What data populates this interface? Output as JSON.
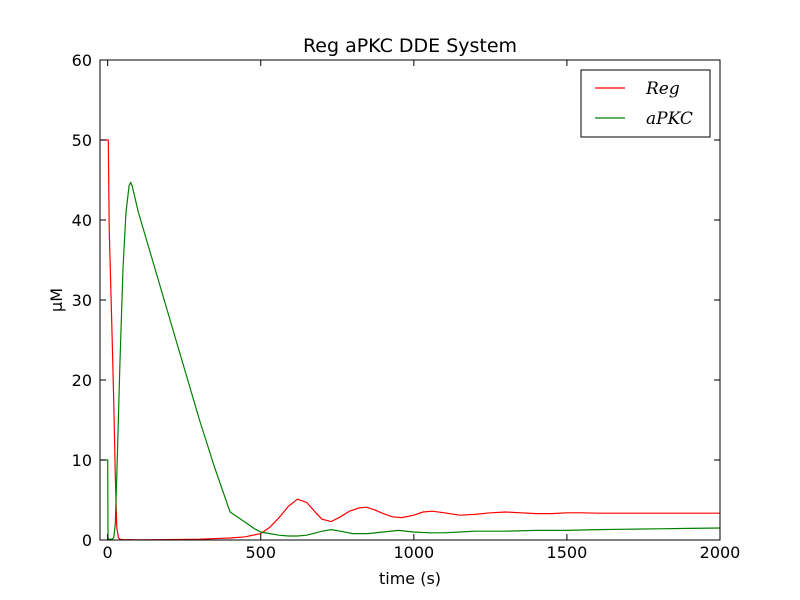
{
  "chart_data": {
    "type": "line",
    "title": "Reg aPKC DDE System",
    "xlabel": "time (s)",
    "ylabel": "μM",
    "xlim": [
      -25,
      2000
    ],
    "ylim": [
      0,
      60
    ],
    "x_ticks": [
      0,
      500,
      1000,
      1500,
      2000
    ],
    "y_ticks": [
      0,
      10,
      20,
      30,
      40,
      50,
      60
    ],
    "grid": false,
    "legend_position": "top-right",
    "series": [
      {
        "name": "Reg",
        "color": "#ff0000",
        "x": [
          -25,
          0,
          2,
          5,
          10,
          15,
          20,
          25,
          30,
          35,
          40,
          50,
          100,
          200,
          300,
          400,
          450,
          500,
          530,
          560,
          590,
          620,
          650,
          680,
          700,
          730,
          760,
          790,
          820,
          845,
          870,
          900,
          930,
          960,
          1000,
          1030,
          1060,
          1100,
          1150,
          1200,
          1250,
          1300,
          1350,
          1400,
          1450,
          1500,
          1550,
          1600,
          1700,
          1800,
          1900,
          2000
        ],
        "y": [
          50,
          50,
          50,
          39,
          32,
          25,
          17,
          8,
          1.5,
          0.3,
          0.1,
          0.05,
          0.03,
          0.05,
          0.1,
          0.25,
          0.4,
          0.8,
          1.6,
          2.8,
          4.2,
          5.1,
          4.7,
          3.4,
          2.6,
          2.3,
          2.9,
          3.6,
          4.0,
          4.1,
          3.8,
          3.3,
          2.9,
          2.8,
          3.1,
          3.5,
          3.6,
          3.4,
          3.1,
          3.2,
          3.4,
          3.5,
          3.4,
          3.3,
          3.3,
          3.4,
          3.4,
          3.35,
          3.35,
          3.35,
          3.35,
          3.35
        ]
      },
      {
        "name": "aPKC",
        "color": "#008000",
        "x": [
          -25,
          0,
          1,
          5,
          15,
          20,
          25,
          30,
          40,
          50,
          60,
          70,
          75,
          80,
          100,
          150,
          200,
          250,
          300,
          350,
          400,
          450,
          480,
          500,
          530,
          560,
          590,
          620,
          650,
          680,
          700,
          730,
          760,
          800,
          850,
          900,
          950,
          1000,
          1050,
          1100,
          1150,
          1200,
          1300,
          1400,
          1500,
          1600,
          1700,
          1800,
          1900,
          2000
        ],
        "y": [
          10,
          10,
          0.2,
          0.1,
          0.1,
          0.3,
          2,
          8,
          22,
          34,
          41,
          44.3,
          44.7,
          44.3,
          41,
          34.5,
          28,
          21.5,
          15,
          9,
          3.5,
          2.2,
          1.4,
          1.0,
          0.8,
          0.6,
          0.5,
          0.5,
          0.6,
          0.9,
          1.1,
          1.3,
          1.1,
          0.8,
          0.8,
          1.0,
          1.2,
          1.0,
          0.9,
          0.9,
          1.0,
          1.1,
          1.1,
          1.2,
          1.2,
          1.3,
          1.35,
          1.4,
          1.45,
          1.5
        ]
      }
    ]
  }
}
